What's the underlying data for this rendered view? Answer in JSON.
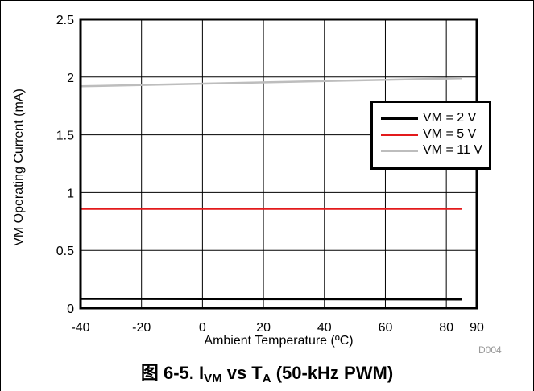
{
  "chart_data": {
    "type": "line",
    "xlabel": "Ambient Temperature (ºC)",
    "ylabel": "VM Operating Current (mA)",
    "xlim": [
      -40,
      90
    ],
    "ylim": [
      0,
      2.5
    ],
    "x_ticks": [
      "-40",
      "-20",
      "0",
      "20",
      "40",
      "60",
      "80",
      "90"
    ],
    "y_ticks": [
      "0",
      "0.5",
      "1",
      "1.5",
      "2",
      "2.5"
    ],
    "grid": true,
    "legend_position": "right",
    "series": [
      {
        "name": "VM = 2 V",
        "color": "#000000",
        "x": [
          -40,
          85
        ],
        "y": [
          0.08,
          0.075
        ]
      },
      {
        "name": "VM = 5 V",
        "color": "#e31a1c",
        "x": [
          -40,
          85
        ],
        "y": [
          0.86,
          0.86
        ]
      },
      {
        "name": "VM = 11 V",
        "color": "#bdbdbd",
        "x": [
          -40,
          85
        ],
        "y": [
          1.92,
          1.99
        ]
      }
    ]
  },
  "caption": {
    "prefix": "图 6-5. I",
    "sub1": "VM",
    "middle": " vs T",
    "sub2": "A",
    "suffix": " (50-kHz PWM)"
  },
  "figure_code": "D004"
}
